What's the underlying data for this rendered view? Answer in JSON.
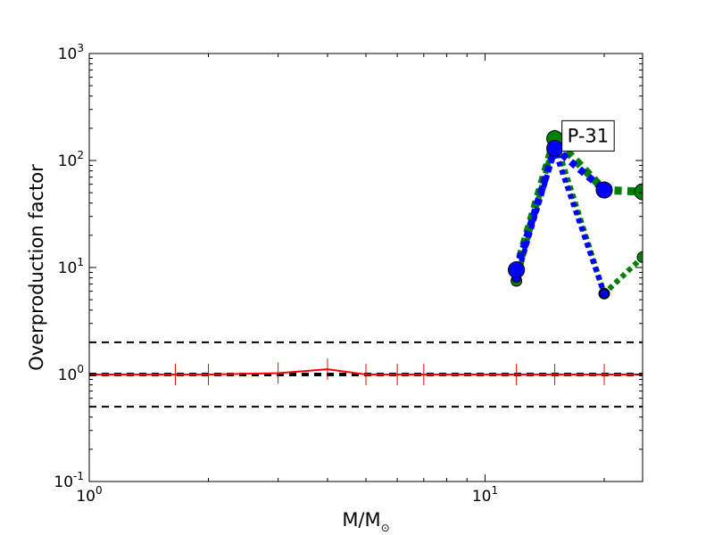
{
  "chart_data": {
    "type": "line",
    "title": "",
    "xlabel": "M/M",
    "xlabel_sub": "⊙",
    "ylabel": "Overproduction factor",
    "xscale": "log",
    "yscale": "log",
    "xlim": [
      1,
      25
    ],
    "ylim": [
      0.1,
      1000
    ],
    "grid": false,
    "x_ticks": [
      {
        "value": 1,
        "base": "10",
        "exp": "0"
      },
      {
        "value": 10,
        "base": "10",
        "exp": "1"
      }
    ],
    "y_ticks": [
      {
        "value": 0.1,
        "base": "10",
        "exp": "-1"
      },
      {
        "value": 1,
        "base": "10",
        "exp": "0"
      },
      {
        "value": 10,
        "base": "10",
        "exp": "1"
      },
      {
        "value": 100,
        "base": "10",
        "exp": "2"
      },
      {
        "value": 1000,
        "base": "10",
        "exp": "3"
      }
    ],
    "reference_lines": [
      {
        "y": 2,
        "color": "#000000",
        "style": "dashed",
        "width": 2
      },
      {
        "y": 1,
        "color": "#000000",
        "style": "dashed",
        "width": 4
      },
      {
        "y": 0.5,
        "color": "#000000",
        "style": "dashed",
        "width": 2
      }
    ],
    "series": [
      {
        "color": "#ff0000",
        "style": "solid",
        "width": 2,
        "marker": "vline",
        "x": [
          1,
          1.65,
          2,
          3,
          4,
          5,
          6,
          7,
          12,
          15,
          20,
          25
        ],
        "y": [
          1,
          1,
          1,
          1.03,
          1.12,
          1.0,
          1.0,
          1.0,
          1.0,
          1.0,
          1.0,
          1.0
        ]
      },
      {
        "color": "#008000",
        "style": "dotted",
        "width": 6,
        "marker": "circle",
        "marker_size": 6,
        "x": [
          12,
          15,
          20,
          25
        ],
        "y": [
          7.5,
          160,
          5.7,
          12.5
        ]
      },
      {
        "color": "#008000",
        "style": "dotted",
        "width": 9,
        "marker": "circle",
        "marker_size": 9,
        "x": [
          12,
          15,
          20,
          25
        ],
        "y": [
          9.5,
          160,
          53,
          51
        ]
      },
      {
        "color": "#0000ff",
        "style": "dotted",
        "width": 6,
        "marker": "circle",
        "marker_size": 5,
        "x": [
          12,
          15,
          20
        ],
        "y": [
          8.0,
          125,
          5.7
        ]
      },
      {
        "color": "#0000ff",
        "style": "dotted",
        "width": 8,
        "marker": "circle",
        "marker_size": 9,
        "x": [
          12,
          15,
          20
        ],
        "y": [
          9.5,
          130,
          53
        ]
      }
    ],
    "annotations": [
      {
        "text": "P-31",
        "x": 15.5,
        "y": 180
      }
    ]
  }
}
